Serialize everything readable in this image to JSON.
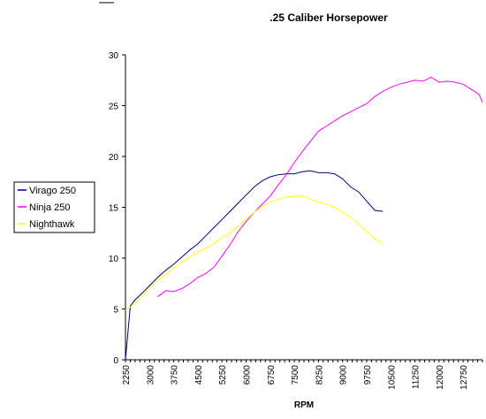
{
  "chart_data": {
    "type": "line",
    "title": ".25 Caliber Horsepower",
    "xlabel": "RPM",
    "ylabel": "",
    "x_tick_labels": [
      "2250",
      "3000",
      "3750",
      "4500",
      "5250",
      "6000",
      "6750",
      "7500",
      "8250",
      "9000",
      "9750",
      "10500",
      "11250",
      "12000",
      "12750"
    ],
    "x_range": [
      2250,
      13350
    ],
    "y_ticks": [
      0,
      5,
      10,
      15,
      20,
      25,
      30
    ],
    "ylim": [
      0,
      30
    ],
    "grid": false,
    "legend_position": "left",
    "series": [
      {
        "name": "Virago 250",
        "color": "#000080",
        "points": [
          [
            2250,
            0
          ],
          [
            2400,
            5.3
          ],
          [
            2550,
            5.9
          ],
          [
            2750,
            6.5
          ],
          [
            3000,
            7.3
          ],
          [
            3250,
            8.1
          ],
          [
            3500,
            8.8
          ],
          [
            3750,
            9.4
          ],
          [
            4000,
            10.1
          ],
          [
            4250,
            10.8
          ],
          [
            4500,
            11.4
          ],
          [
            4750,
            12.2
          ],
          [
            5000,
            13.0
          ],
          [
            5250,
            13.8
          ],
          [
            5500,
            14.6
          ],
          [
            5750,
            15.4
          ],
          [
            6000,
            16.2
          ],
          [
            6250,
            17.0
          ],
          [
            6500,
            17.6
          ],
          [
            6750,
            18.0
          ],
          [
            7000,
            18.2
          ],
          [
            7250,
            18.3
          ],
          [
            7500,
            18.3
          ],
          [
            7750,
            18.5
          ],
          [
            8000,
            18.6
          ],
          [
            8250,
            18.4
          ],
          [
            8500,
            18.4
          ],
          [
            8750,
            18.3
          ],
          [
            9000,
            17.8
          ],
          [
            9250,
            17.0
          ],
          [
            9500,
            16.5
          ],
          [
            9750,
            15.6
          ],
          [
            10000,
            14.7
          ],
          [
            10250,
            14.6
          ]
        ]
      },
      {
        "name": "Ninja 250",
        "color": "#ff00ff",
        "points": [
          [
            3250,
            6.2
          ],
          [
            3500,
            6.8
          ],
          [
            3750,
            6.7
          ],
          [
            4000,
            7.0
          ],
          [
            4250,
            7.5
          ],
          [
            4500,
            8.1
          ],
          [
            4750,
            8.5
          ],
          [
            5000,
            9.1
          ],
          [
            5250,
            10.2
          ],
          [
            5500,
            11.3
          ],
          [
            5750,
            12.6
          ],
          [
            6000,
            13.6
          ],
          [
            6250,
            14.5
          ],
          [
            6500,
            15.3
          ],
          [
            6750,
            16.1
          ],
          [
            7000,
            17.2
          ],
          [
            7250,
            18.2
          ],
          [
            7500,
            19.4
          ],
          [
            7750,
            20.5
          ],
          [
            8000,
            21.5
          ],
          [
            8250,
            22.5
          ],
          [
            8500,
            23.0
          ],
          [
            8750,
            23.5
          ],
          [
            9000,
            24.0
          ],
          [
            9250,
            24.4
          ],
          [
            9500,
            24.8
          ],
          [
            9750,
            25.2
          ],
          [
            10000,
            25.9
          ],
          [
            10250,
            26.4
          ],
          [
            10500,
            26.8
          ],
          [
            10750,
            27.1
          ],
          [
            11000,
            27.3
          ],
          [
            11250,
            27.5
          ],
          [
            11500,
            27.4
          ],
          [
            11750,
            27.8
          ],
          [
            12000,
            27.3
          ],
          [
            12250,
            27.4
          ],
          [
            12500,
            27.3
          ],
          [
            12750,
            27.1
          ],
          [
            13000,
            26.6
          ],
          [
            13250,
            26.1
          ],
          [
            13350,
            25.3
          ]
        ]
      },
      {
        "name": "Nighthawk",
        "color": "#ffff00",
        "points": [
          [
            2250,
            4.9
          ],
          [
            2500,
            5.4
          ],
          [
            2750,
            6.2
          ],
          [
            3000,
            7.1
          ],
          [
            3250,
            7.8
          ],
          [
            3500,
            8.4
          ],
          [
            3750,
            9.0
          ],
          [
            4000,
            9.6
          ],
          [
            4250,
            10.1
          ],
          [
            4500,
            10.6
          ],
          [
            4750,
            11.0
          ],
          [
            5000,
            11.4
          ],
          [
            5250,
            12.0
          ],
          [
            5500,
            12.5
          ],
          [
            5750,
            13.1
          ],
          [
            6000,
            13.8
          ],
          [
            6250,
            14.5
          ],
          [
            6500,
            15.1
          ],
          [
            6750,
            15.5
          ],
          [
            7000,
            15.8
          ],
          [
            7250,
            16.0
          ],
          [
            7500,
            16.1
          ],
          [
            7750,
            16.1
          ],
          [
            8000,
            15.8
          ],
          [
            8250,
            15.5
          ],
          [
            8500,
            15.3
          ],
          [
            8750,
            15.0
          ],
          [
            9000,
            14.5
          ],
          [
            9250,
            14.0
          ],
          [
            9500,
            13.4
          ],
          [
            9750,
            12.6
          ],
          [
            10000,
            11.9
          ],
          [
            10250,
            11.4
          ]
        ]
      }
    ]
  }
}
